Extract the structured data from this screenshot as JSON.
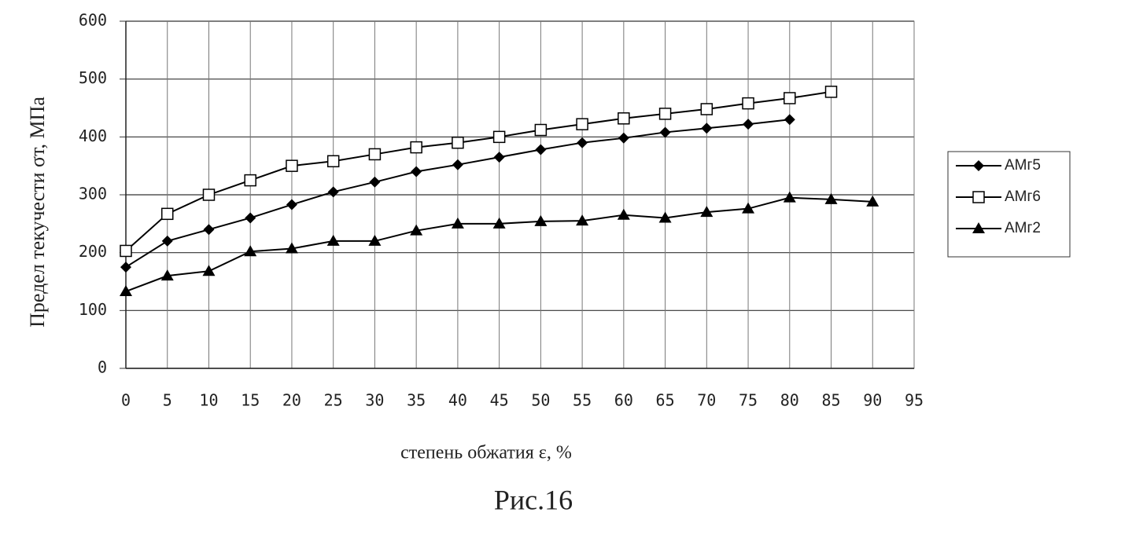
{
  "chart_data": {
    "type": "line",
    "caption": "Рис.16",
    "xlabel": "степень обжатия ε, %",
    "ylabel": "Предел текучести σт, МПа",
    "x": [
      0,
      5,
      10,
      15,
      20,
      25,
      30,
      35,
      40,
      45,
      50,
      55,
      60,
      65,
      70,
      75,
      80,
      85,
      90
    ],
    "series": [
      {
        "name": "АМг5",
        "color": "#000000",
        "marker": "diamond",
        "values": [
          175,
          220,
          240,
          260,
          283,
          305,
          322,
          340,
          352,
          365,
          378,
          390,
          398,
          408,
          415,
          422,
          430,
          null,
          null
        ]
      },
      {
        "name": "АМг6",
        "color": "#000000",
        "marker": "square",
        "values": [
          203,
          267,
          300,
          325,
          350,
          358,
          370,
          382,
          390,
          400,
          412,
          422,
          432,
          440,
          448,
          458,
          467,
          478,
          null
        ]
      },
      {
        "name": "АМг2",
        "color": "#000000",
        "marker": "triangle",
        "values": [
          133,
          160,
          168,
          202,
          207,
          220,
          220,
          238,
          250,
          250,
          254,
          255,
          265,
          260,
          270,
          276,
          295,
          292,
          288
        ]
      }
    ],
    "xlim": [
      0,
      95
    ],
    "xticks": [
      0,
      5,
      10,
      15,
      20,
      25,
      30,
      35,
      40,
      45,
      50,
      55,
      60,
      65,
      70,
      75,
      80,
      85,
      90,
      95
    ],
    "ylim": [
      0,
      600
    ],
    "yticks": [
      0,
      100,
      200,
      300,
      400,
      500,
      600
    ],
    "grid": true,
    "legend": "right"
  }
}
